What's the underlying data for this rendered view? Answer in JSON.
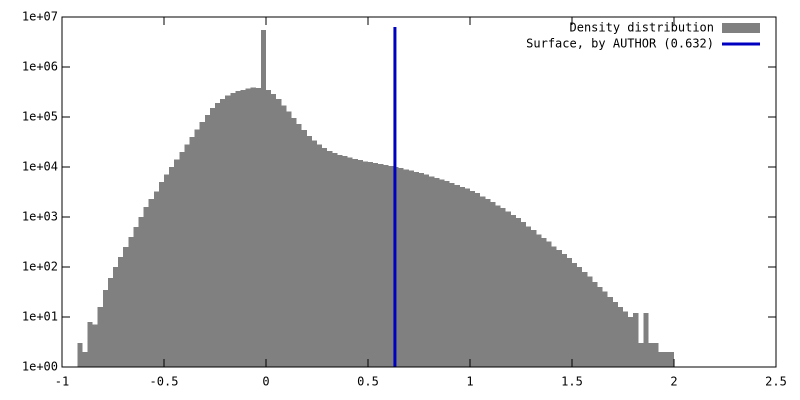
{
  "chart_data": {
    "type": "histogram",
    "xlim": [
      -1,
      2.5
    ],
    "xticks": [
      -1,
      -0.5,
      0,
      0.5,
      1,
      1.5,
      2,
      2.5
    ],
    "ylim": [
      1,
      10000000
    ],
    "yticks": [
      {
        "value": 1,
        "label": "1e+00"
      },
      {
        "value": 10,
        "label": "1e+01"
      },
      {
        "value": 100,
        "label": "1e+02"
      },
      {
        "value": 1000,
        "label": "1e+03"
      },
      {
        "value": 10000,
        "label": "1e+04"
      },
      {
        "value": 100000,
        "label": "1e+05"
      },
      {
        "value": 1000000,
        "label": "1e+06"
      },
      {
        "value": 10000000,
        "label": "1e+07"
      }
    ],
    "log_y": true,
    "legend": "top-right",
    "series": [
      {
        "name": "Density distribution",
        "type": "histogram",
        "color": "#808080",
        "bins": [
          -0.925,
          -0.9,
          -0.875,
          -0.85,
          -0.825,
          -0.8,
          -0.775,
          -0.75,
          -0.725,
          -0.7,
          -0.675,
          -0.65,
          -0.625,
          -0.6,
          -0.575,
          -0.55,
          -0.525,
          -0.5,
          -0.475,
          -0.45,
          -0.425,
          -0.4,
          -0.375,
          -0.35,
          -0.325,
          -0.3,
          -0.275,
          -0.25,
          -0.225,
          -0.2,
          -0.175,
          -0.15,
          -0.125,
          -0.1,
          -0.075,
          -0.05,
          -0.025,
          0,
          0.025,
          0.05,
          0.075,
          0.1,
          0.125,
          0.15,
          0.175,
          0.2,
          0.225,
          0.25,
          0.275,
          0.3,
          0.325,
          0.35,
          0.375,
          0.4,
          0.425,
          0.45,
          0.475,
          0.5,
          0.525,
          0.55,
          0.575,
          0.6,
          0.625,
          0.65,
          0.675,
          0.7,
          0.725,
          0.75,
          0.775,
          0.8,
          0.825,
          0.85,
          0.875,
          0.9,
          0.925,
          0.95,
          0.975,
          1,
          1.025,
          1.05,
          1.075,
          1.1,
          1.125,
          1.15,
          1.175,
          1.2,
          1.225,
          1.25,
          1.275,
          1.3,
          1.325,
          1.35,
          1.375,
          1.4,
          1.425,
          1.45,
          1.475,
          1.5,
          1.525,
          1.55,
          1.575,
          1.6,
          1.625,
          1.65,
          1.675,
          1.7,
          1.725,
          1.75,
          1.775,
          1.8,
          1.825,
          1.85,
          1.875,
          1.9,
          1.925,
          1.95,
          1.975,
          2
        ],
        "values": [
          3,
          2,
          8,
          7,
          16,
          35,
          60,
          100,
          160,
          250,
          400,
          630,
          1000,
          1600,
          2300,
          3200,
          5000,
          7000,
          10000,
          14000,
          20000,
          28000,
          40000,
          56000,
          80000,
          110000,
          150000,
          190000,
          230000,
          270000,
          300000,
          330000,
          350000,
          370000,
          390000,
          380000,
          5500000,
          350000,
          290000,
          230000,
          170000,
          130000,
          95000,
          72000,
          55000,
          42000,
          34000,
          28000,
          24000,
          21000,
          19000,
          17500,
          16500,
          15500,
          14500,
          13800,
          13000,
          12500,
          12000,
          11500,
          11000,
          10500,
          10000,
          9500,
          9000,
          8500,
          8000,
          7500,
          7000,
          6500,
          6000,
          5600,
          5200,
          4800,
          4400,
          4000,
          3700,
          3300,
          3000,
          2600,
          2300,
          2000,
          1700,
          1500,
          1300,
          1100,
          950,
          800,
          650,
          550,
          450,
          380,
          320,
          260,
          220,
          180,
          150,
          120,
          100,
          80,
          65,
          50,
          40,
          32,
          25,
          20,
          16,
          13,
          10,
          12,
          3,
          12,
          3,
          3,
          2,
          2,
          2
        ]
      },
      {
        "name": "Surface, by AUTHOR (0.632)",
        "type": "line",
        "color": "#0000c0",
        "x": [
          0.632,
          0.632
        ],
        "values": [
          1,
          6300000
        ]
      }
    ]
  }
}
